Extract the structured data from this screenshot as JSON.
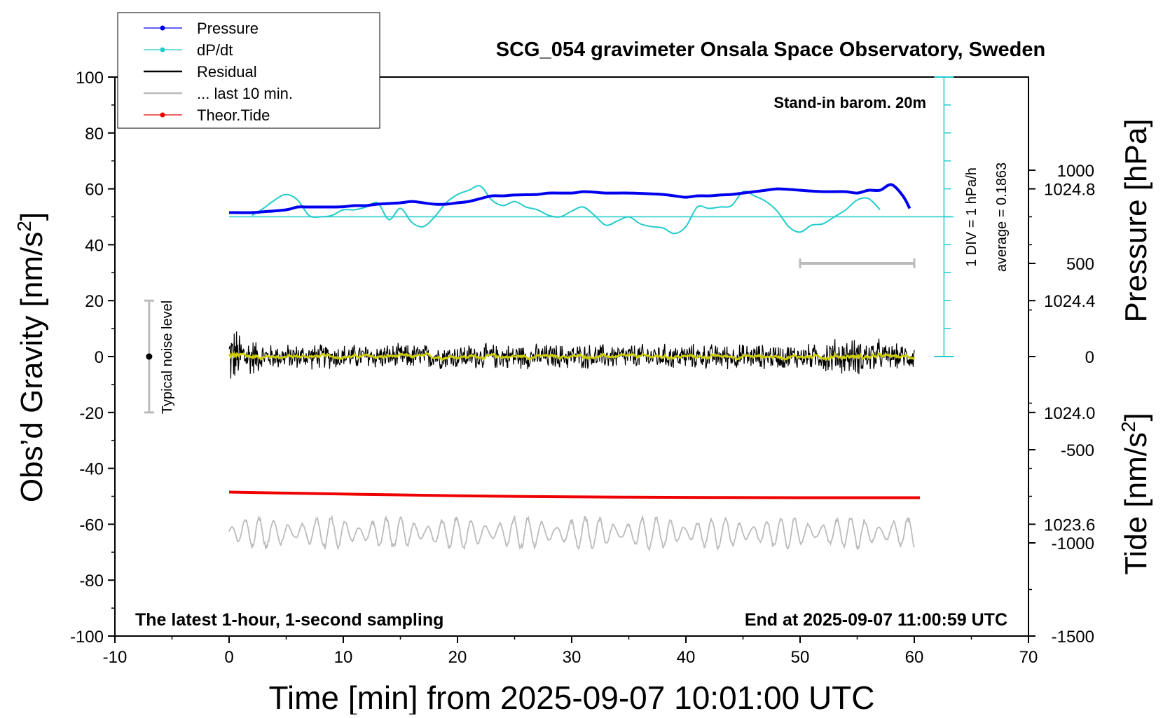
{
  "chart_data": {
    "type": "line",
    "title": "SCG_054 gravimeter Onsala Space Observatory, Sweden",
    "xlabel": "Time [min] from 2025-09-07 10:01:00 UTC",
    "ylabel_left_main": "Obs’d Gravity [nm/s",
    "ylabel_left_sup": "2",
    "ylabel_left_end": "]",
    "ylabel_right_pressure": "Pressure [hPa]",
    "ylabel_right_tide_main": "Tide [nm/s",
    "ylabel_right_tide_sup": "2",
    "ylabel_right_tide_end": "]",
    "xlim": [
      -10,
      70
    ],
    "ylim": [
      -100,
      100
    ],
    "pressure_lim": [
      1023.2,
      1025.2
    ],
    "tide_lim": [
      -1500,
      1500
    ],
    "x_ticks": [
      "-10",
      "0",
      "10",
      "20",
      "30",
      "40",
      "50",
      "60",
      "70"
    ],
    "y_ticks": [
      "100",
      "80",
      "60",
      "40",
      "20",
      "0",
      "-20",
      "-40",
      "-60",
      "-80",
      "-100"
    ],
    "pressure_ticks": [
      "1024.8",
      "1024.4",
      "1024.0",
      "1023.6"
    ],
    "tide_ticks": [
      "1000",
      "500",
      "0",
      "-500",
      "-1000",
      "-1500"
    ],
    "legend": [
      "Pressure",
      "dP/dt",
      "Residual",
      "... last 10 min.",
      "Theor.Tide"
    ],
    "legend_placement": "top-left",
    "annotations": {
      "barometer": "Stand-in barom. 20m",
      "latest": "The latest 1-hour, 1-second sampling",
      "end": "End at 2025-09-07 11:00:59 UTC",
      "div": "1 DIV = 1 hPa/h",
      "average": "average = 0.1863",
      "noise": "Typical noise level"
    },
    "colors": {
      "pressure": "#0000ee",
      "dpdt": "#22cccc",
      "residual": "#000000",
      "last10": "#bbbbbb",
      "tide": "#ee0000",
      "filtered": "#cccc00"
    },
    "series": [
      {
        "name": "Pressure",
        "x": [
          0,
          2,
          3,
          5,
          6,
          7,
          9,
          10,
          11,
          12,
          13,
          15,
          16,
          17,
          18,
          19,
          20,
          21,
          22,
          23,
          24,
          25,
          27,
          28,
          30,
          31,
          32,
          33,
          35,
          37,
          38,
          39,
          40,
          41,
          42,
          43,
          44,
          45,
          46,
          47,
          48,
          49,
          50,
          51,
          52,
          53,
          54,
          55,
          56,
          57,
          58,
          59,
          59.6
        ],
        "values": [
          51.5,
          51.5,
          51.8,
          52.5,
          53.5,
          53.5,
          53.5,
          53.6,
          54.0,
          54.0,
          54.5,
          55.0,
          55.5,
          55.0,
          54.5,
          54.5,
          55.0,
          55.5,
          56.5,
          57.5,
          57.5,
          57.8,
          58.0,
          58.5,
          58.5,
          59.0,
          58.8,
          58.5,
          58.5,
          58.2,
          58.0,
          57.5,
          57.0,
          57.5,
          57.5,
          57.8,
          58.0,
          58.5,
          59.0,
          59.5,
          60.0,
          59.8,
          59.5,
          59.2,
          59.0,
          59.0,
          59.0,
          58.5,
          59.5,
          59.5,
          61.5,
          57.5,
          53.0
        ]
      },
      {
        "name": "dP/dt",
        "x": [
          2,
          3,
          4,
          5,
          6,
          7,
          8,
          9,
          10,
          11,
          12,
          13,
          14,
          15,
          16,
          17,
          18,
          19,
          20,
          21,
          22,
          23,
          24,
          25,
          26,
          27,
          28,
          29,
          30,
          31,
          32,
          33,
          34,
          35,
          36,
          37,
          38,
          39,
          40,
          41,
          42,
          43,
          44,
          45,
          46,
          47,
          48,
          49,
          50,
          51,
          52,
          53,
          54,
          55,
          56,
          57
        ],
        "values": [
          50.5,
          53.0,
          56.0,
          58.0,
          56.0,
          50.5,
          50.0,
          50.5,
          52.5,
          52.5,
          53.5,
          55.0,
          49.0,
          53.0,
          48.0,
          46.5,
          50.0,
          55.0,
          58.0,
          59.5,
          61.0,
          56.0,
          54.0,
          55.5,
          53.5,
          52.5,
          50.5,
          50.0,
          52.0,
          53.5,
          50.5,
          47.0,
          48.5,
          50.0,
          47.5,
          46.5,
          46.0,
          44.0,
          46.5,
          53.5,
          53.0,
          53.5,
          54.0,
          59.0,
          57.5,
          55.5,
          52.0,
          46.5,
          44.5,
          47.0,
          47.5,
          50.0,
          52.5,
          56.0,
          56.5,
          52.5
        ]
      },
      {
        "name": "Theor.Tide",
        "x": [
          0,
          10,
          20,
          30,
          40,
          50,
          60.5
        ],
        "values": [
          -48.5,
          -49.2,
          -49.8,
          -50.2,
          -50.4,
          -50.5,
          -50.5
        ]
      },
      {
        "name": "Residual",
        "x_start": 0,
        "x_end": 60,
        "center": 0,
        "amplitude_range": [
          -17,
          15
        ]
      },
      {
        "name": "... last 10 min.",
        "x_start": 50,
        "x_end": 60
      }
    ],
    "dpdt_zero_line": 50,
    "noise_bar": {
      "x": -7,
      "low": -20,
      "high": 20
    }
  }
}
